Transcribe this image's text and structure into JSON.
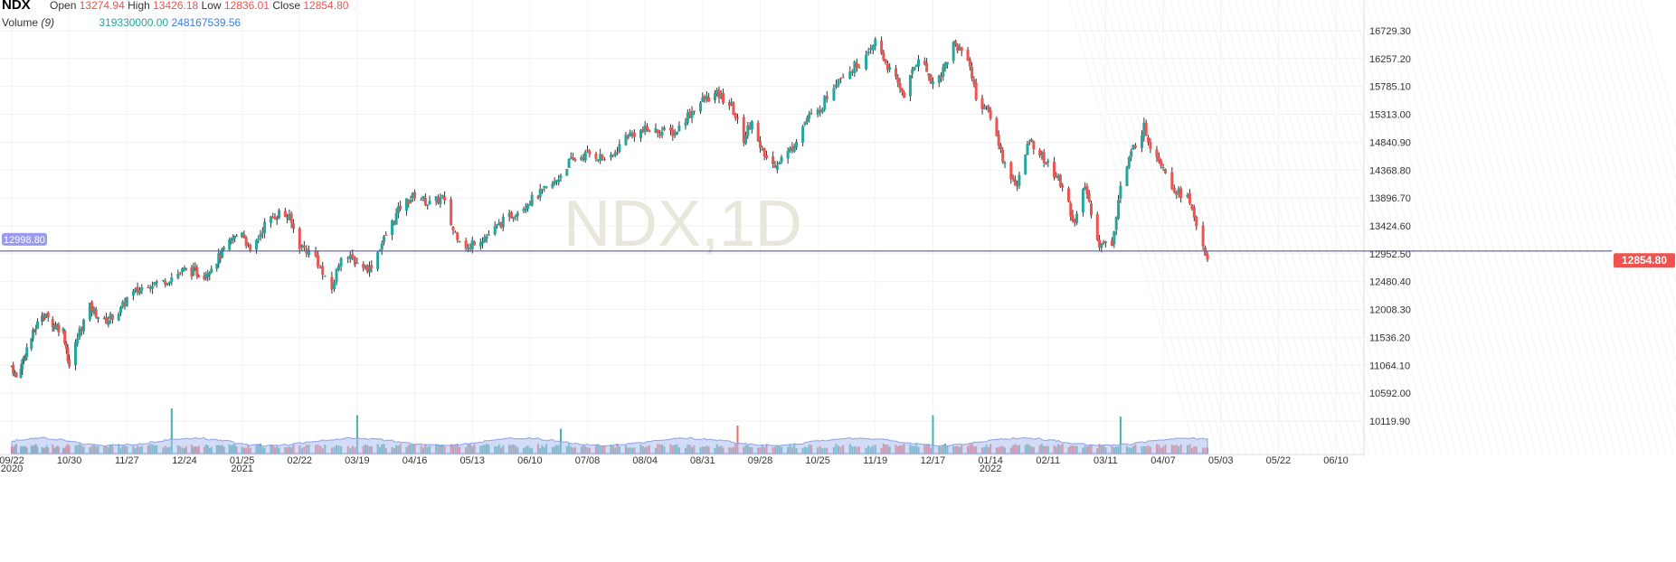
{
  "header": {
    "symbol": "NDX",
    "open_label": "Open",
    "open_value": "13274.94",
    "high_label": "High",
    "high_value": "13426.18",
    "low_label": "Low",
    "low_value": "12836.01",
    "close_label": "Close",
    "close_value": "12854.80",
    "volume_label": "Volume",
    "volume_period": "(9)",
    "volume_value": "319330000.00",
    "volume_ma_value": "248167539.56"
  },
  "watermark": "NDX,1D",
  "horizontal_line": {
    "value": 12998.8,
    "label": "12998.80",
    "color": "#7b7be0"
  },
  "last_price": {
    "value": 12854.8,
    "label": "12854.80",
    "color": "#ef5350"
  },
  "colors": {
    "up": "#26a69a",
    "down": "#ef5350",
    "volume_area": "#aebfee"
  },
  "chart_data": {
    "type": "candlestick",
    "title": "",
    "ylim": [
      9800,
      16950
    ],
    "y_ticks": [
      "16729.30",
      "16257.20",
      "15785.10",
      "15313.00",
      "14840.90",
      "14368.80",
      "13896.70",
      "13424.60",
      "12952.50",
      "12480.40",
      "12008.30",
      "11536.20",
      "11064.10",
      "10592.00",
      "10119.90"
    ],
    "x_ticks": [
      {
        "label": "09/22",
        "sub": "2020",
        "date": "2020-09-22"
      },
      {
        "label": "10/30",
        "sub": "",
        "date": "2020-10-30"
      },
      {
        "label": "11/27",
        "sub": "",
        "date": "2020-11-27"
      },
      {
        "label": "12/24",
        "sub": "",
        "date": "2020-12-24"
      },
      {
        "label": "01/25",
        "sub": "2021",
        "date": "2021-01-25"
      },
      {
        "label": "02/22",
        "sub": "",
        "date": "2021-02-22"
      },
      {
        "label": "03/19",
        "sub": "",
        "date": "2021-03-19"
      },
      {
        "label": "04/16",
        "sub": "",
        "date": "2021-04-16"
      },
      {
        "label": "05/13",
        "sub": "",
        "date": "2021-05-13"
      },
      {
        "label": "06/10",
        "sub": "",
        "date": "2021-06-10"
      },
      {
        "label": "07/08",
        "sub": "",
        "date": "2021-07-08"
      },
      {
        "label": "08/04",
        "sub": "",
        "date": "2021-08-04"
      },
      {
        "label": "08/31",
        "sub": "",
        "date": "2021-08-31"
      },
      {
        "label": "09/28",
        "sub": "",
        "date": "2021-09-28"
      },
      {
        "label": "10/25",
        "sub": "",
        "date": "2021-10-25"
      },
      {
        "label": "11/19",
        "sub": "",
        "date": "2021-11-19"
      },
      {
        "label": "12/17",
        "sub": "",
        "date": "2021-12-17"
      },
      {
        "label": "01/14",
        "sub": "2022",
        "date": "2022-01-14"
      },
      {
        "label": "02/11",
        "sub": "",
        "date": "2022-02-11"
      },
      {
        "label": "03/11",
        "sub": "",
        "date": "2022-03-11"
      },
      {
        "label": "04/07",
        "sub": "",
        "date": "2022-04-07"
      },
      {
        "label": "05/03",
        "sub": "",
        "date": "2022-05-03"
      },
      {
        "label": "05/22",
        "sub": "",
        "date": "2022-05-22"
      },
      {
        "label": "06/10",
        "sub": "",
        "date": "2022-06-10"
      }
    ],
    "close_path": [
      [
        "2020-09-22",
        11050
      ],
      [
        "2020-09-25",
        10850
      ],
      [
        "2020-10-02",
        11350
      ],
      [
        "2020-10-12",
        11950
      ],
      [
        "2020-10-20",
        11750
      ],
      [
        "2020-10-26",
        11650
      ],
      [
        "2020-10-30",
        11050
      ],
      [
        "2020-11-04",
        11650
      ],
      [
        "2020-11-09",
        12050
      ],
      [
        "2020-11-16",
        11800
      ],
      [
        "2020-11-24",
        12000
      ],
      [
        "2020-11-27",
        12200
      ],
      [
        "2020-12-07",
        12450
      ],
      [
        "2020-12-14",
        12480
      ],
      [
        "2020-12-24",
        12680
      ],
      [
        "2021-01-04",
        12600
      ],
      [
        "2021-01-11",
        12850
      ],
      [
        "2021-01-20",
        13200
      ],
      [
        "2021-01-25",
        13350
      ],
      [
        "2021-01-29",
        12950
      ],
      [
        "2021-02-05",
        13450
      ],
      [
        "2021-02-12",
        13650
      ],
      [
        "2021-02-17",
        13550
      ],
      [
        "2021-02-22",
        13100
      ],
      [
        "2021-03-01",
        12900
      ],
      [
        "2021-03-05",
        12500
      ],
      [
        "2021-03-08",
        12350
      ],
      [
        "2021-03-12",
        12950
      ],
      [
        "2021-03-19",
        12800
      ],
      [
        "2021-03-25",
        12700
      ],
      [
        "2021-04-01",
        13200
      ],
      [
        "2021-04-09",
        13750
      ],
      [
        "2021-04-16",
        13950
      ],
      [
        "2021-04-23",
        13800
      ],
      [
        "2021-04-29",
        13900
      ],
      [
        "2021-05-04",
        13350
      ],
      [
        "2021-05-12",
        13000
      ],
      [
        "2021-05-13",
        13150
      ],
      [
        "2021-05-20",
        13250
      ],
      [
        "2021-05-28",
        13500
      ],
      [
        "2021-06-10",
        13850
      ],
      [
        "2021-06-22",
        14150
      ],
      [
        "2021-06-29",
        14500
      ],
      [
        "2021-07-08",
        14650
      ],
      [
        "2021-07-19",
        14550
      ],
      [
        "2021-07-26",
        14950
      ],
      [
        "2021-08-04",
        15050
      ],
      [
        "2021-08-18",
        15000
      ],
      [
        "2021-08-24",
        15300
      ],
      [
        "2021-08-31",
        15550
      ],
      [
        "2021-09-07",
        15650
      ],
      [
        "2021-09-14",
        15450
      ],
      [
        "2021-09-20",
        14900
      ],
      [
        "2021-09-24",
        15250
      ],
      [
        "2021-09-28",
        14700
      ],
      [
        "2021-10-04",
        14450
      ],
      [
        "2021-10-12",
        14700
      ],
      [
        "2021-10-20",
        15250
      ],
      [
        "2021-10-25",
        15350
      ],
      [
        "2021-11-03",
        15950
      ],
      [
        "2021-11-09",
        16100
      ],
      [
        "2021-11-16",
        16300
      ],
      [
        "2021-11-19",
        16550
      ],
      [
        "2021-11-26",
        16050
      ],
      [
        "2021-12-03",
        15650
      ],
      [
        "2021-12-10",
        16300
      ],
      [
        "2021-12-17",
        15850
      ],
      [
        "2021-12-21",
        16000
      ],
      [
        "2021-12-27",
        16500
      ],
      [
        "2022-01-03",
        16300
      ],
      [
        "2022-01-07",
        15600
      ],
      [
        "2022-01-14",
        15300
      ],
      [
        "2022-01-21",
        14450
      ],
      [
        "2022-01-27",
        14100
      ],
      [
        "2022-02-02",
        14900
      ],
      [
        "2022-02-11",
        14450
      ],
      [
        "2022-02-18",
        14100
      ],
      [
        "2022-02-24",
        13450
      ],
      [
        "2022-03-01",
        14100
      ],
      [
        "2022-03-08",
        13100
      ],
      [
        "2022-03-14",
        13150
      ],
      [
        "2022-03-18",
        14100
      ],
      [
        "2022-03-24",
        14750
      ],
      [
        "2022-03-29",
        15100
      ],
      [
        "2022-04-01",
        14800
      ],
      [
        "2022-04-07",
        14450
      ],
      [
        "2022-04-12",
        14050
      ],
      [
        "2022-04-18",
        13900
      ],
      [
        "2022-04-22",
        13450
      ],
      [
        "2022-04-27",
        12860
      ]
    ],
    "volume_spikes": [
      [
        "2020-12-18",
        1.0
      ],
      [
        "2021-03-19",
        0.85
      ],
      [
        "2021-06-25",
        0.55
      ],
      [
        "2021-09-17",
        0.62
      ],
      [
        "2021-12-17",
        0.85
      ],
      [
        "2022-03-18",
        0.82
      ]
    ]
  }
}
